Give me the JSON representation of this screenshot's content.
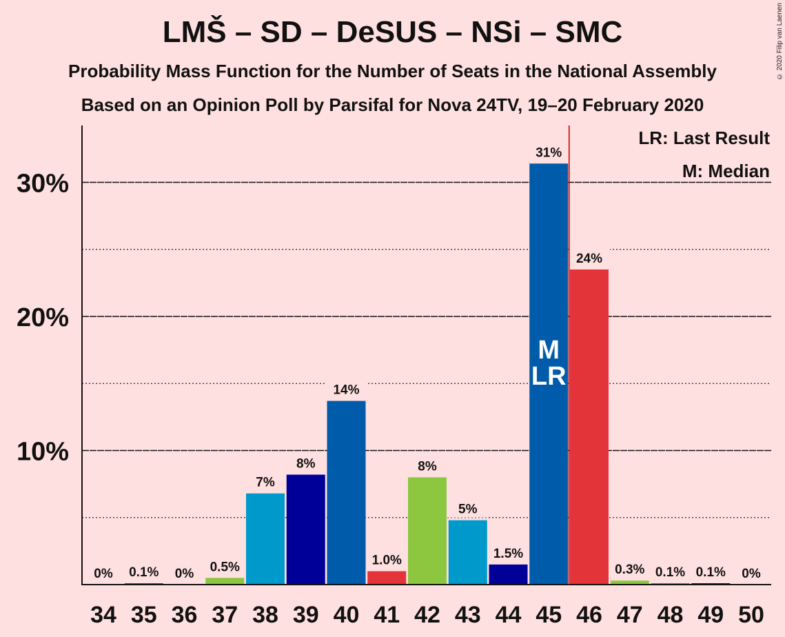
{
  "title": "LMŠ – SD – DeSUS – NSi – SMC",
  "subtitle1": "Probability Mass Function for the Number of Seats in the National Assembly",
  "subtitle2": "Based on an Opinion Poll by Parsifal for Nova 24TV, 19–20 February 2020",
  "copyright": "© 2020 Filip van Laenen",
  "legend": {
    "last_result": "LR: Last Result",
    "median": "M: Median"
  },
  "colors": {
    "background": "#FFE0E0",
    "median_line": "#CC0000"
  },
  "chart_data": {
    "type": "bar",
    "categories": [
      "34",
      "35",
      "36",
      "37",
      "38",
      "39",
      "40",
      "41",
      "42",
      "43",
      "44",
      "45",
      "46",
      "47",
      "48",
      "49",
      "50"
    ],
    "values": [
      0,
      0.1,
      0,
      0.5,
      6.8,
      8.2,
      13.7,
      1.0,
      8.0,
      4.8,
      1.5,
      31.4,
      23.5,
      0.3,
      0.1,
      0.1,
      0
    ],
    "labels": [
      "0%",
      "0.1%",
      "0%",
      "0.5%",
      "7%",
      "8%",
      "14%",
      "1.0%",
      "8%",
      "5%",
      "1.5%",
      "31%",
      "24%",
      "0.3%",
      "0.1%",
      "0.1%",
      "0%"
    ],
    "bar_colors": [
      "#0057A8",
      "#0057A8",
      "#0057A8",
      "#8DC63F",
      "#0099CC",
      "#000099",
      "#005BAA",
      "#E3343A",
      "#8DC63F",
      "#0099CC",
      "#000099",
      "#005BAA",
      "#E3343A",
      "#8DC63F",
      "#0099CC",
      "#000099",
      "#005BAA"
    ],
    "yticks": [
      10,
      20,
      30
    ],
    "ytick_labels": [
      "10%",
      "20%",
      "30%"
    ],
    "ylim": [
      0,
      34.2
    ],
    "minor_gridlines": [
      5,
      15,
      25
    ],
    "median_seat": "45",
    "last_result_seat": "45",
    "bar_markers": [
      {
        "seat": "45",
        "lines": [
          "M",
          "LR"
        ]
      }
    ],
    "median_line_after_seat": "45"
  }
}
